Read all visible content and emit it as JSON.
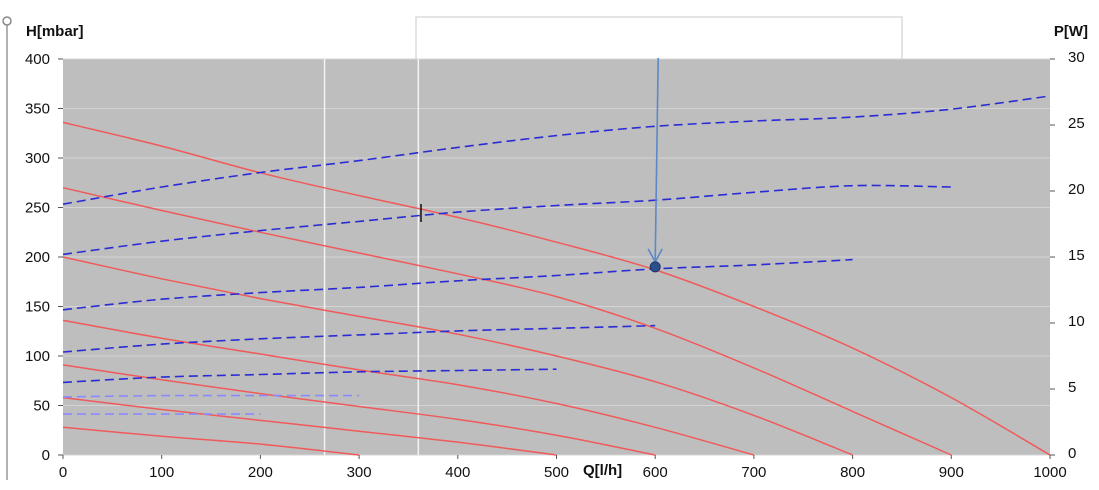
{
  "chart_data": {
    "type": "line",
    "x_axis": {
      "label": "Q[l/h]",
      "range": [
        0,
        1000
      ],
      "ticks": [
        "0",
        "100",
        "200",
        "300",
        "400",
        "500",
        "600",
        "700",
        "800",
        "900",
        "1000"
      ]
    },
    "y_axis_left": {
      "label": "H[mbar]",
      "range": [
        0,
        400
      ],
      "ticks": [
        "0",
        "50",
        "100",
        "150",
        "200",
        "250",
        "300",
        "350",
        "400"
      ]
    },
    "y_axis_right": {
      "label": "P[W]",
      "range": [
        0,
        30
      ],
      "ticks": [
        "0",
        "5",
        "10",
        "15",
        "20",
        "25",
        "30"
      ]
    },
    "grid": true,
    "plot_background": "#bebebe",
    "colors": {
      "head": "#f05a5a",
      "power": "#2b2bd6",
      "power_light": "#8a8aff",
      "pointer": "#5a88c8",
      "point": "#2d4e8c"
    },
    "head_curves": [
      {
        "x": [
          0,
          100,
          200,
          300,
          400,
          500,
          600,
          700,
          800,
          900,
          1000
        ],
        "y": [
          336,
          312,
          285,
          262,
          240,
          215,
          187,
          150,
          108,
          58,
          0
        ]
      },
      {
        "x": [
          0,
          100,
          200,
          300,
          400,
          500,
          600,
          700,
          800,
          900
        ],
        "y": [
          270,
          247,
          225,
          204,
          183,
          160,
          128,
          88,
          44,
          0
        ]
      },
      {
        "x": [
          0,
          100,
          200,
          300,
          400,
          500,
          600,
          700,
          800
        ],
        "y": [
          200,
          178,
          158,
          140,
          122,
          100,
          74,
          40,
          0
        ]
      },
      {
        "x": [
          0,
          100,
          200,
          300,
          400,
          500,
          600,
          700
        ],
        "y": [
          136,
          118,
          102,
          86,
          71,
          52,
          28,
          0
        ]
      },
      {
        "x": [
          0,
          100,
          200,
          300,
          400,
          500,
          600
        ],
        "y": [
          91,
          76,
          62,
          49,
          36,
          20,
          0
        ]
      },
      {
        "x": [
          0,
          100,
          200,
          300,
          400,
          500
        ],
        "y": [
          58,
          46,
          35,
          24,
          13,
          0
        ]
      },
      {
        "x": [
          0,
          100,
          200,
          300
        ],
        "y": [
          28,
          19,
          11,
          0
        ]
      }
    ],
    "power_curves": [
      {
        "x": [
          0,
          100,
          200,
          300,
          400,
          500,
          600,
          700,
          800,
          900,
          1000
        ],
        "y": [
          19,
          20.3,
          21.4,
          22.3,
          23.3,
          24.2,
          24.9,
          25.3,
          25.6,
          26.2,
          27.2
        ]
      },
      {
        "x": [
          0,
          100,
          200,
          300,
          400,
          500,
          600,
          700,
          800,
          900
        ],
        "y": [
          15.2,
          16.2,
          17,
          17.7,
          18.4,
          18.9,
          19.3,
          19.9,
          20.4,
          20.3
        ]
      },
      {
        "x": [
          0,
          100,
          200,
          300,
          400,
          500,
          600,
          700,
          800
        ],
        "y": [
          11,
          11.8,
          12.3,
          12.7,
          13.2,
          13.6,
          14.1,
          14.4,
          14.8
        ]
      },
      {
        "x": [
          0,
          100,
          200,
          300,
          400,
          500,
          600
        ],
        "y": [
          7.8,
          8.4,
          8.8,
          9.1,
          9.4,
          9.6,
          9.8
        ]
      },
      {
        "x": [
          0,
          100,
          200,
          300,
          400,
          500
        ],
        "y": [
          5.5,
          5.9,
          6.1,
          6.3,
          6.4,
          6.5
        ]
      },
      {
        "x": [
          0,
          100,
          200,
          300
        ],
        "y": [
          4.4,
          4.5,
          4.5,
          4.5
        ]
      },
      {
        "x": [
          0,
          100,
          200
        ],
        "y": [
          3.1,
          3.1,
          3.1
        ]
      }
    ],
    "operating_point": {
      "x": 600,
      "y": 190
    },
    "white_vlines": [
      265,
      360
    ]
  }
}
